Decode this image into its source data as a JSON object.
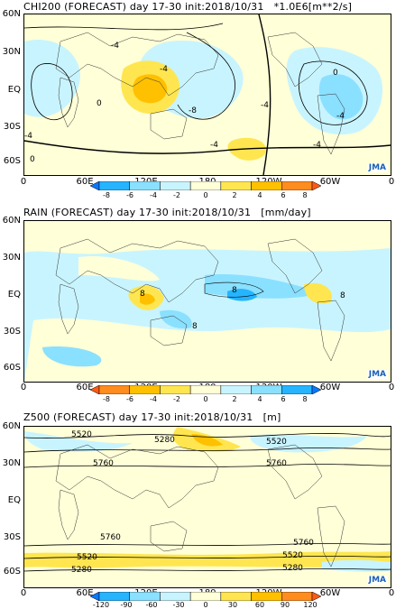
{
  "panels": [
    {
      "id": "chi200",
      "title": "CHI200 (FORECAST) day 17-30 init:2018/10/31   *1.0E6[m**2/s]",
      "lat_labels": [
        "60N",
        "30N",
        "EQ",
        "30S",
        "60S"
      ],
      "lon_labels": [
        "0",
        "60E",
        "120E",
        "180",
        "120W",
        "60W",
        "0"
      ],
      "colorbar": {
        "labels": [
          "-8",
          "-6",
          "-4",
          "-2",
          "0",
          "2",
          "4",
          "6",
          "8"
        ],
        "colors": [
          "#0a78ff",
          "#26b4ff",
          "#8ae0ff",
          "#c8f4ff",
          "#ffffd8",
          "#ffe650",
          "#ffc000",
          "#ff8c1e",
          "#ff5a14"
        ]
      },
      "contour_labels": [
        "-4",
        "0",
        "-4",
        "-8",
        "-4",
        "0",
        "-4",
        "-4",
        "-4",
        "0",
        "-4"
      ],
      "logo": "JMA"
    },
    {
      "id": "rain",
      "title": "RAIN (FORECAST) day 17-30 init:2018/10/31   [mm/day]",
      "lat_labels": [
        "60N",
        "30N",
        "EQ",
        "30S",
        "60S"
      ],
      "lon_labels": [
        "0",
        "60E",
        "120E",
        "180",
        "120W",
        "60W",
        "0"
      ],
      "colorbar": {
        "labels": [
          "-8",
          "-6",
          "-4",
          "-2",
          "0",
          "2",
          "4",
          "6",
          "8"
        ],
        "colors": [
          "#ff5a14",
          "#ff8c1e",
          "#ffc000",
          "#ffe650",
          "#ffffd8",
          "#c8f4ff",
          "#8ae0ff",
          "#26b4ff",
          "#0a78ff"
        ]
      },
      "contour_labels": [
        "8",
        "8",
        "8",
        "8"
      ],
      "logo": "JMA"
    },
    {
      "id": "z500",
      "title": "Z500 (FORECAST) day 17-30 init:2018/10/31   [m]",
      "lat_labels": [
        "60N",
        "30N",
        "EQ",
        "30S",
        "60S"
      ],
      "lon_labels": [
        "0",
        "60E",
        "120E",
        "180",
        "120W",
        "60W",
        "0"
      ],
      "colorbar": {
        "labels": [
          "-120",
          "-90",
          "-60",
          "-30",
          "0",
          "30",
          "60",
          "90",
          "120"
        ],
        "colors": [
          "#0a78ff",
          "#26b4ff",
          "#8ae0ff",
          "#c8f4ff",
          "#ffffd8",
          "#ffe650",
          "#ffc000",
          "#ff8c1e",
          "#ff5a14"
        ]
      },
      "contour_labels": [
        "5520",
        "5280",
        "5520",
        "5760",
        "5760",
        "5760",
        "5760",
        "5520",
        "5520",
        "5280",
        "5280"
      ],
      "logo": "JMA"
    }
  ]
}
